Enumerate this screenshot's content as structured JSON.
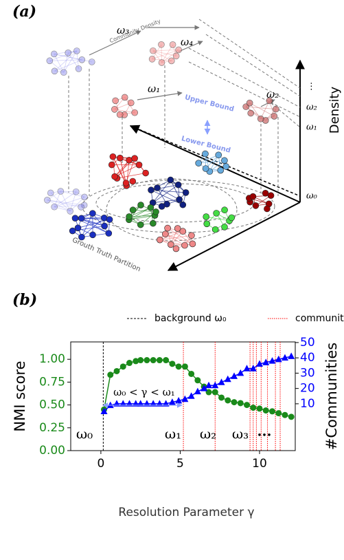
{
  "panel_a": {
    "label": "(a)",
    "community_density": "Community Density",
    "omega3": "ω₃",
    "omega4": "ω₄",
    "omega1": "ω₁",
    "omega2": "ω₂",
    "upper_bound": "Upper Bound",
    "lower_bound": "Lower Bound",
    "density_axis": "Density",
    "tick_dots": "⋮",
    "tick_omega2": "ω₂",
    "tick_omega1": "ω₁",
    "tick_omega0": "ω₀",
    "floor_label": "Grouth Truth Partition"
  },
  "panel_b_label": "(b)",
  "chart_data": {
    "type": "line",
    "x_label": "Resolution Parameter γ",
    "y_label": "NMI score",
    "y2_label": "#Communities",
    "x": [
      0.2,
      0.6,
      1.0,
      1.4,
      1.8,
      2.2,
      2.5,
      2.9,
      3.3,
      3.7,
      4.1,
      4.5,
      4.9,
      5.3,
      5.7,
      6.1,
      6.5,
      6.8,
      7.2,
      7.6,
      8.0,
      8.4,
      8.8,
      9.2,
      9.6,
      10.0,
      10.4,
      10.8,
      11.2,
      11.6,
      12.0
    ],
    "series": [
      {
        "name": "NMI score",
        "color": "#1a8a1a",
        "marker": "circle",
        "values": [
          0.45,
          0.83,
          0.87,
          0.92,
          0.96,
          0.98,
          0.99,
          0.99,
          0.99,
          0.99,
          0.99,
          0.95,
          0.92,
          0.92,
          0.84,
          0.77,
          0.7,
          0.64,
          0.64,
          0.58,
          0.55,
          0.53,
          0.52,
          0.5,
          0.47,
          0.46,
          0.44,
          0.43,
          0.41,
          0.39,
          0.37
        ]
      },
      {
        "name": "#Communities",
        "color": "#0000ff",
        "marker": "triangle",
        "axis": "y2",
        "values": [
          5,
          9,
          10,
          10,
          10,
          10,
          10,
          10,
          10,
          10,
          10,
          11,
          12,
          13,
          15,
          18,
          20,
          22,
          22,
          24,
          26,
          28,
          30,
          33,
          33,
          36,
          37,
          38,
          39,
          40,
          41
        ]
      }
    ],
    "reference_lines": [
      {
        "name": "background ω₀",
        "color": "#000000",
        "style": "dashed",
        "x": [
          0.15
        ]
      },
      {
        "name": "communities ωᵣ",
        "color": "#ff0000",
        "style": "dotted",
        "x": [
          5.2,
          7.2,
          9.4,
          9.6,
          9.8,
          10.1,
          10.5,
          11.0,
          11.3
        ]
      }
    ],
    "annotations": [
      "ω₀",
      "ω₁",
      "ω₂",
      "ω₃",
      "..."
    ],
    "range_annotation": "ω₀ < γ < ω₁",
    "xlim": [
      -1.9,
      12.25
    ],
    "xticks": [
      0,
      5,
      10
    ],
    "ylim": [
      0,
      1.19
    ],
    "yticks": [
      {
        "value": 0,
        "label": "0.00"
      },
      {
        "value": 0.25,
        "label": "0.25"
      },
      {
        "value": 0.5,
        "label": "0.50"
      },
      {
        "value": 0.75,
        "label": "0.75"
      },
      {
        "value": 1,
        "label": "1.00"
      }
    ],
    "y2lim": [
      -20.6,
      50.4
    ],
    "y2ticks": [
      10,
      20,
      30,
      40,
      50
    ]
  }
}
